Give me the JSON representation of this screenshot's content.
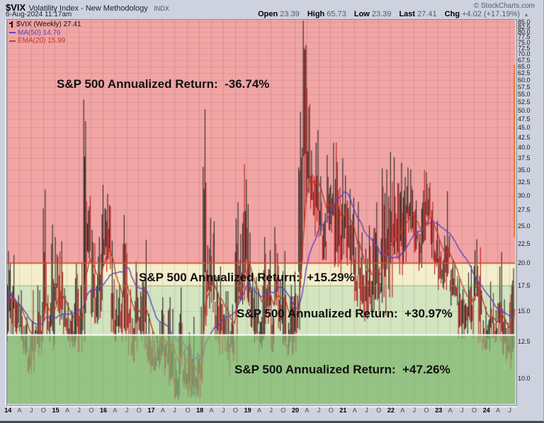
{
  "header": {
    "symbol": "$VIX",
    "title": "Volatility Index - New Methodology",
    "exchange": "INDX",
    "datetime": "6-Aug-2024 11:17am",
    "copyright": "© StockCharts.com",
    "quote": {
      "open_label": "Open",
      "open_value": "23.39",
      "high_label": "High",
      "high_value": "65.73",
      "low_label": "Low",
      "low_value": "23.39",
      "last_label": "Last",
      "last_value": "27.41",
      "chg_label": "Chg",
      "chg_value": "+4.02 (+17.19%)",
      "chg_arrow": "▲"
    }
  },
  "legend": {
    "series_label": "$VIX (Weekly) 27.41",
    "ma_label": "MA(50) 14.76",
    "ema_label": "EMA(20) 15.99",
    "ma_color": "#5a44c4",
    "ema_color": "#bf3a22"
  },
  "annotations": [
    {
      "text": "S&P 500 Annualized Return:  -36.74%"
    },
    {
      "text": "S&P 500 Annualized Return:  +15.29%"
    },
    {
      "text": "S&P 500 Annualized Return:  +30.97%"
    },
    {
      "text": "S&P 500 Annualized Return:  +47.26%"
    }
  ],
  "chart_data": {
    "type": "bar",
    "subtype": "weekly-high-low-bars",
    "title": "$VIX Volatility Index (Weekly), 2014 - Aug 2024",
    "y_axis": {
      "scale": "log",
      "min": 8.6,
      "max": 86,
      "ticks": [
        85,
        82.5,
        80,
        77.5,
        75,
        72.5,
        70,
        67.5,
        65,
        62.5,
        60,
        57.5,
        55,
        52.5,
        50,
        47.5,
        45,
        42.5,
        40,
        37.5,
        35,
        32.5,
        30,
        27.5,
        25,
        22.5,
        20,
        17.5,
        15,
        12.5,
        10
      ]
    },
    "x_axis": {
      "first_month": "2014-01",
      "last_month": "2024-08",
      "labels": [
        "14",
        "A",
        "J",
        "O",
        "15",
        "A",
        "J",
        "O",
        "16",
        "A",
        "J",
        "O",
        "17",
        "A",
        "J",
        "O",
        "18",
        "A",
        "J",
        "O",
        "19",
        "A",
        "J",
        "O",
        "20",
        "A",
        "J",
        "O",
        "21",
        "A",
        "J",
        "O",
        "22",
        "A",
        "J",
        "O",
        "23",
        "A",
        "J",
        "O",
        "24",
        "A",
        "J"
      ]
    },
    "zones": [
      {
        "vix_from": 20,
        "vix_to": 86,
        "color": "#f2a5a5",
        "sp500_annualized_return": "-36.74%"
      },
      {
        "vix_from": 17.5,
        "vix_to": 20,
        "color": "#f4eecb",
        "sp500_annualized_return": "+15.29%"
      },
      {
        "vix_from": 13,
        "vix_to": 17.5,
        "color": "#d2e5c0",
        "sp500_annualized_return": "+30.97%"
      },
      {
        "vix_from": 8.6,
        "vix_to": 13,
        "color": "#94c385",
        "sp500_annualized_return": "+47.26%"
      }
    ],
    "threshold_lines": [
      {
        "value": 20,
        "color": "#cf4f28"
      },
      {
        "value": 13,
        "color": "#ffffff"
      }
    ],
    "monthly_low_high": [
      [
        12.5,
        21.5
      ],
      [
        13,
        21
      ],
      [
        13,
        16.5
      ],
      [
        12.5,
        17
      ],
      [
        11.5,
        14.5
      ],
      [
        10.3,
        13
      ],
      [
        10.3,
        17
      ],
      [
        11.5,
        17.5
      ],
      [
        11.5,
        17
      ],
      [
        14,
        31.1
      ],
      [
        12.5,
        16.5
      ],
      [
        11.8,
        25.2
      ],
      [
        15,
        23.4
      ],
      [
        13.8,
        22.8
      ],
      [
        12.9,
        17.2
      ],
      [
        12.1,
        15.8
      ],
      [
        12,
        15.7
      ],
      [
        11.7,
        20
      ],
      [
        11.7,
        20
      ],
      [
        12.5,
        53.3
      ],
      [
        20.6,
        29.9
      ],
      [
        13.9,
        24.4
      ],
      [
        13.9,
        20.8
      ],
      [
        14.4,
        26.8
      ],
      [
        19,
        32
      ],
      [
        19.3,
        30.3
      ],
      [
        13,
        22.9
      ],
      [
        12.5,
        17.1
      ],
      [
        12.5,
        17.6
      ],
      [
        12.6,
        26.7
      ],
      [
        11.5,
        21.2
      ],
      [
        11,
        14.4
      ],
      [
        11.8,
        20.2
      ],
      [
        12.5,
        17.9
      ],
      [
        11.9,
        23
      ],
      [
        10.9,
        14.8
      ],
      [
        10.3,
        13.3
      ],
      [
        10.5,
        13
      ],
      [
        10.6,
        15.1
      ],
      [
        10.2,
        16.3
      ],
      [
        9.6,
        16.3
      ],
      [
        9.7,
        15.2
      ],
      [
        8.8,
        11.3
      ],
      [
        9,
        17.3
      ],
      [
        9.4,
        12
      ],
      [
        9,
        13.2
      ],
      [
        8.9,
        14.5
      ],
      [
        8.9,
        11.7
      ],
      [
        8.9,
        15.4
      ],
      [
        12.9,
        50.3
      ],
      [
        14.6,
        26.2
      ],
      [
        14.9,
        25.7
      ],
      [
        12.6,
        18.5
      ],
      [
        11.5,
        19.6
      ],
      [
        11.8,
        16.9
      ],
      [
        10.2,
        16.9
      ],
      [
        11.1,
        15.6
      ],
      [
        11,
        28.8
      ],
      [
        15.9,
        23.8
      ],
      [
        15.6,
        36.2
      ],
      [
        15.5,
        28.5
      ],
      [
        13.3,
        18.2
      ],
      [
        12.4,
        18.4
      ],
      [
        11.8,
        14.5
      ],
      [
        12.6,
        23.4
      ],
      [
        13.9,
        21.6
      ],
      [
        11.7,
        16.5
      ],
      [
        15.5,
        24.8
      ],
      [
        13.3,
        19.7
      ],
      [
        12.1,
        21.5
      ],
      [
        11.4,
        14
      ],
      [
        11.5,
        17.6
      ],
      [
        11.8,
        19
      ],
      [
        13.4,
        49.5
      ],
      [
        24.9,
        85.5
      ],
      [
        30.5,
        57.1
      ],
      [
        26.6,
        39.3
      ],
      [
        23.5,
        44.4
      ],
      [
        23.4,
        33.7
      ],
      [
        20.3,
        27
      ],
      [
        24.3,
        38.3
      ],
      [
        24,
        41.2
      ],
      [
        19.5,
        41.2
      ],
      [
        18.9,
        31.5
      ],
      [
        21,
        37.5
      ],
      [
        19.7,
        31.2
      ],
      [
        18.6,
        29.6
      ],
      [
        15.4,
        22
      ],
      [
        15,
        28.9
      ],
      [
        14.1,
        21.8
      ],
      [
        14.3,
        25.1
      ],
      [
        14.9,
        24.7
      ],
      [
        16,
        28.8
      ],
      [
        15,
        23.2
      ],
      [
        14.6,
        35.3
      ],
      [
        16.3,
        35.1
      ],
      [
        16.3,
        38.9
      ],
      [
        20.6,
        37.8
      ],
      [
        18.7,
        36.5
      ],
      [
        18.6,
        33.5
      ],
      [
        24,
        35.5
      ],
      [
        23.7,
        35.1
      ],
      [
        21.3,
        29.1
      ],
      [
        19.1,
        27.7
      ],
      [
        22.4,
        34.9
      ],
      [
        25,
        34.5
      ],
      [
        20.3,
        28.9
      ],
      [
        18.7,
        25.8
      ],
      [
        17,
        23
      ],
      [
        17.1,
        23.6
      ],
      [
        17,
        30.8
      ],
      [
        15.5,
        20.5
      ],
      [
        15.5,
        20.1
      ],
      [
        12.7,
        18.2
      ],
      [
        12.7,
        17.1
      ],
      [
        13.1,
        18.9
      ],
      [
        12.7,
        19.7
      ],
      [
        16,
        23.1
      ],
      [
        12.4,
        22
      ],
      [
        11.8,
        14.2
      ],
      [
        11.8,
        15.4
      ],
      [
        12.7,
        17.9
      ],
      [
        12.4,
        15.1
      ],
      [
        12.5,
        21.4
      ],
      [
        11.5,
        16.1
      ],
      [
        11.1,
        14
      ],
      [
        10.6,
        19.4
      ]
    ],
    "last_bar": {
      "date": "2024-08-05",
      "open": 23.39,
      "high": 65.73,
      "low": 23.39,
      "close": 27.41,
      "color": "#e8732a"
    },
    "overlays": [
      {
        "name": "MA(50)",
        "period": 50,
        "last": 14.76,
        "color": "#5a44c4"
      },
      {
        "name": "EMA(20)",
        "period": 20,
        "last": 15.99,
        "color": "#bf3a22"
      }
    ],
    "bar_colors": {
      "up": "#2e2a26",
      "down": "#b6201e"
    }
  }
}
